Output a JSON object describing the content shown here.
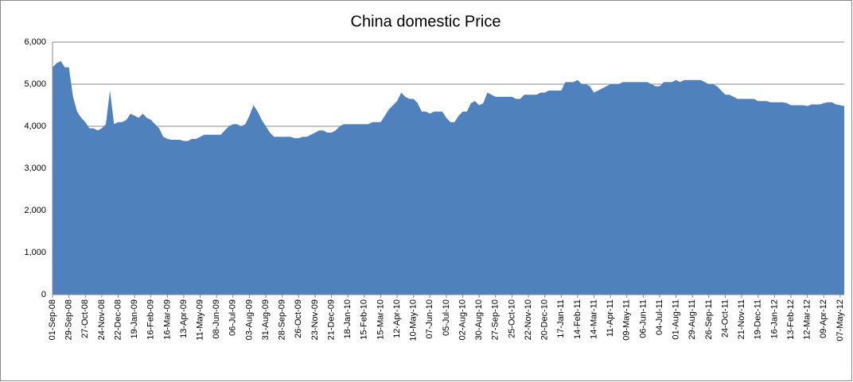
{
  "chart_data": {
    "type": "area",
    "title": "China domestic Price",
    "color": "#4f81bd",
    "grid": true,
    "ylim": [
      0,
      6000
    ],
    "yticks": [
      0,
      {
        "value": 1000,
        "label": "1,000"
      },
      {
        "value": 2000,
        "label": "2,000"
      },
      {
        "value": 3000,
        "label": "3,000"
      },
      {
        "value": 4000,
        "label": "4,000"
      },
      {
        "value": 5000,
        "label": "5,000"
      },
      {
        "value": 6000,
        "label": "6,000"
      }
    ],
    "categories": [
      "01-Sep-08",
      null,
      null,
      null,
      "29-Sep-08",
      null,
      null,
      null,
      "27-Oct-08",
      null,
      null,
      null,
      "24-Nov-08",
      null,
      null,
      null,
      "22-Dec-08",
      null,
      null,
      null,
      "19-Jan-09",
      null,
      null,
      null,
      "16-Feb-09",
      null,
      null,
      null,
      "16-Mar-09",
      null,
      null,
      null,
      "13-Apr-09",
      null,
      null,
      null,
      "11-May-09",
      null,
      null,
      null,
      "08-Jun-09",
      null,
      null,
      null,
      "06-Jul-09",
      null,
      null,
      null,
      "03-Aug-09",
      null,
      null,
      null,
      "31-Aug-09",
      null,
      null,
      null,
      "28-Sep-09",
      null,
      null,
      null,
      "26-Oct-09",
      null,
      null,
      null,
      "23-Nov-09",
      null,
      null,
      null,
      "21-Dec-09",
      null,
      null,
      null,
      "18-Jan-10",
      null,
      null,
      null,
      "15-Feb-10",
      null,
      null,
      null,
      "15-Mar-10",
      null,
      null,
      null,
      "12-Apr-10",
      null,
      null,
      null,
      "10-May-10",
      null,
      null,
      null,
      "07-Jun-10",
      null,
      null,
      null,
      "05-Jul-10",
      null,
      null,
      null,
      "02-Aug-10",
      null,
      null,
      null,
      "30-Aug-10",
      null,
      null,
      null,
      "27-Sep-10",
      null,
      null,
      null,
      "25-Oct-10",
      null,
      null,
      null,
      "22-Nov-10",
      null,
      null,
      null,
      "20-Dec-10",
      null,
      null,
      null,
      "17-Jan-11",
      null,
      null,
      null,
      "14-Feb-11",
      null,
      null,
      null,
      "14-Mar-11",
      null,
      null,
      null,
      "11-Apr-11",
      null,
      null,
      null,
      "09-May-11",
      null,
      null,
      null,
      "06-Jun-11",
      null,
      null,
      null,
      "04-Jul-11",
      null,
      null,
      null,
      "01-Aug-11",
      null,
      null,
      null,
      "29-Aug-11",
      null,
      null,
      null,
      "26-Sep-11",
      null,
      null,
      null,
      "24-Oct-11",
      null,
      null,
      null,
      "21-Nov-11",
      null,
      null,
      null,
      "19-Dec-11",
      null,
      null,
      null,
      "16-Jan-12",
      null,
      null,
      null,
      "13-Feb-12",
      null,
      null,
      null,
      "12-Mar-12",
      null,
      null,
      null,
      "09-Apr-12",
      null,
      null,
      null,
      "07-May-12",
      null
    ],
    "values": [
      5400,
      5500,
      5550,
      5400,
      5400,
      4700,
      4350,
      4200,
      4100,
      3950,
      3950,
      3900,
      3950,
      4050,
      4850,
      4050,
      4100,
      4100,
      4150,
      4300,
      4250,
      4200,
      4300,
      4200,
      4150,
      4050,
      3950,
      3750,
      3700,
      3680,
      3680,
      3680,
      3650,
      3650,
      3700,
      3700,
      3750,
      3800,
      3800,
      3800,
      3800,
      3800,
      3900,
      4000,
      4050,
      4050,
      4000,
      4050,
      4250,
      4500,
      4350,
      4150,
      4000,
      3850,
      3750,
      3750,
      3750,
      3750,
      3750,
      3720,
      3720,
      3750,
      3750,
      3800,
      3850,
      3900,
      3900,
      3850,
      3850,
      3900,
      4000,
      4050,
      4050,
      4050,
      4050,
      4050,
      4050,
      4050,
      4100,
      4100,
      4100,
      4250,
      4400,
      4500,
      4600,
      4800,
      4700,
      4650,
      4650,
      4550,
      4350,
      4350,
      4300,
      4350,
      4350,
      4350,
      4200,
      4100,
      4100,
      4250,
      4350,
      4350,
      4550,
      4600,
      4500,
      4550,
      4800,
      4750,
      4700,
      4700,
      4700,
      4700,
      4700,
      4650,
      4650,
      4750,
      4750,
      4750,
      4750,
      4800,
      4800,
      4850,
      4850,
      4850,
      4850,
      5050,
      5050,
      5050,
      5100,
      5000,
      5000,
      4950,
      4800,
      4850,
      4900,
      4950,
      5000,
      5000,
      5000,
      5050,
      5050,
      5050,
      5050,
      5050,
      5050,
      5050,
      5000,
      4950,
      4950,
      5050,
      5050,
      5050,
      5100,
      5050,
      5100,
      5100,
      5100,
      5100,
      5100,
      5050,
      5000,
      5000,
      4950,
      4850,
      4750,
      4750,
      4700,
      4650,
      4650,
      4650,
      4650,
      4650,
      4600,
      4600,
      4600,
      4570,
      4570,
      4570,
      4570,
      4550,
      4500,
      4500,
      4500,
      4500,
      4480,
      4520,
      4520,
      4520,
      4550,
      4570,
      4570,
      4520,
      4500,
      4480
    ]
  }
}
